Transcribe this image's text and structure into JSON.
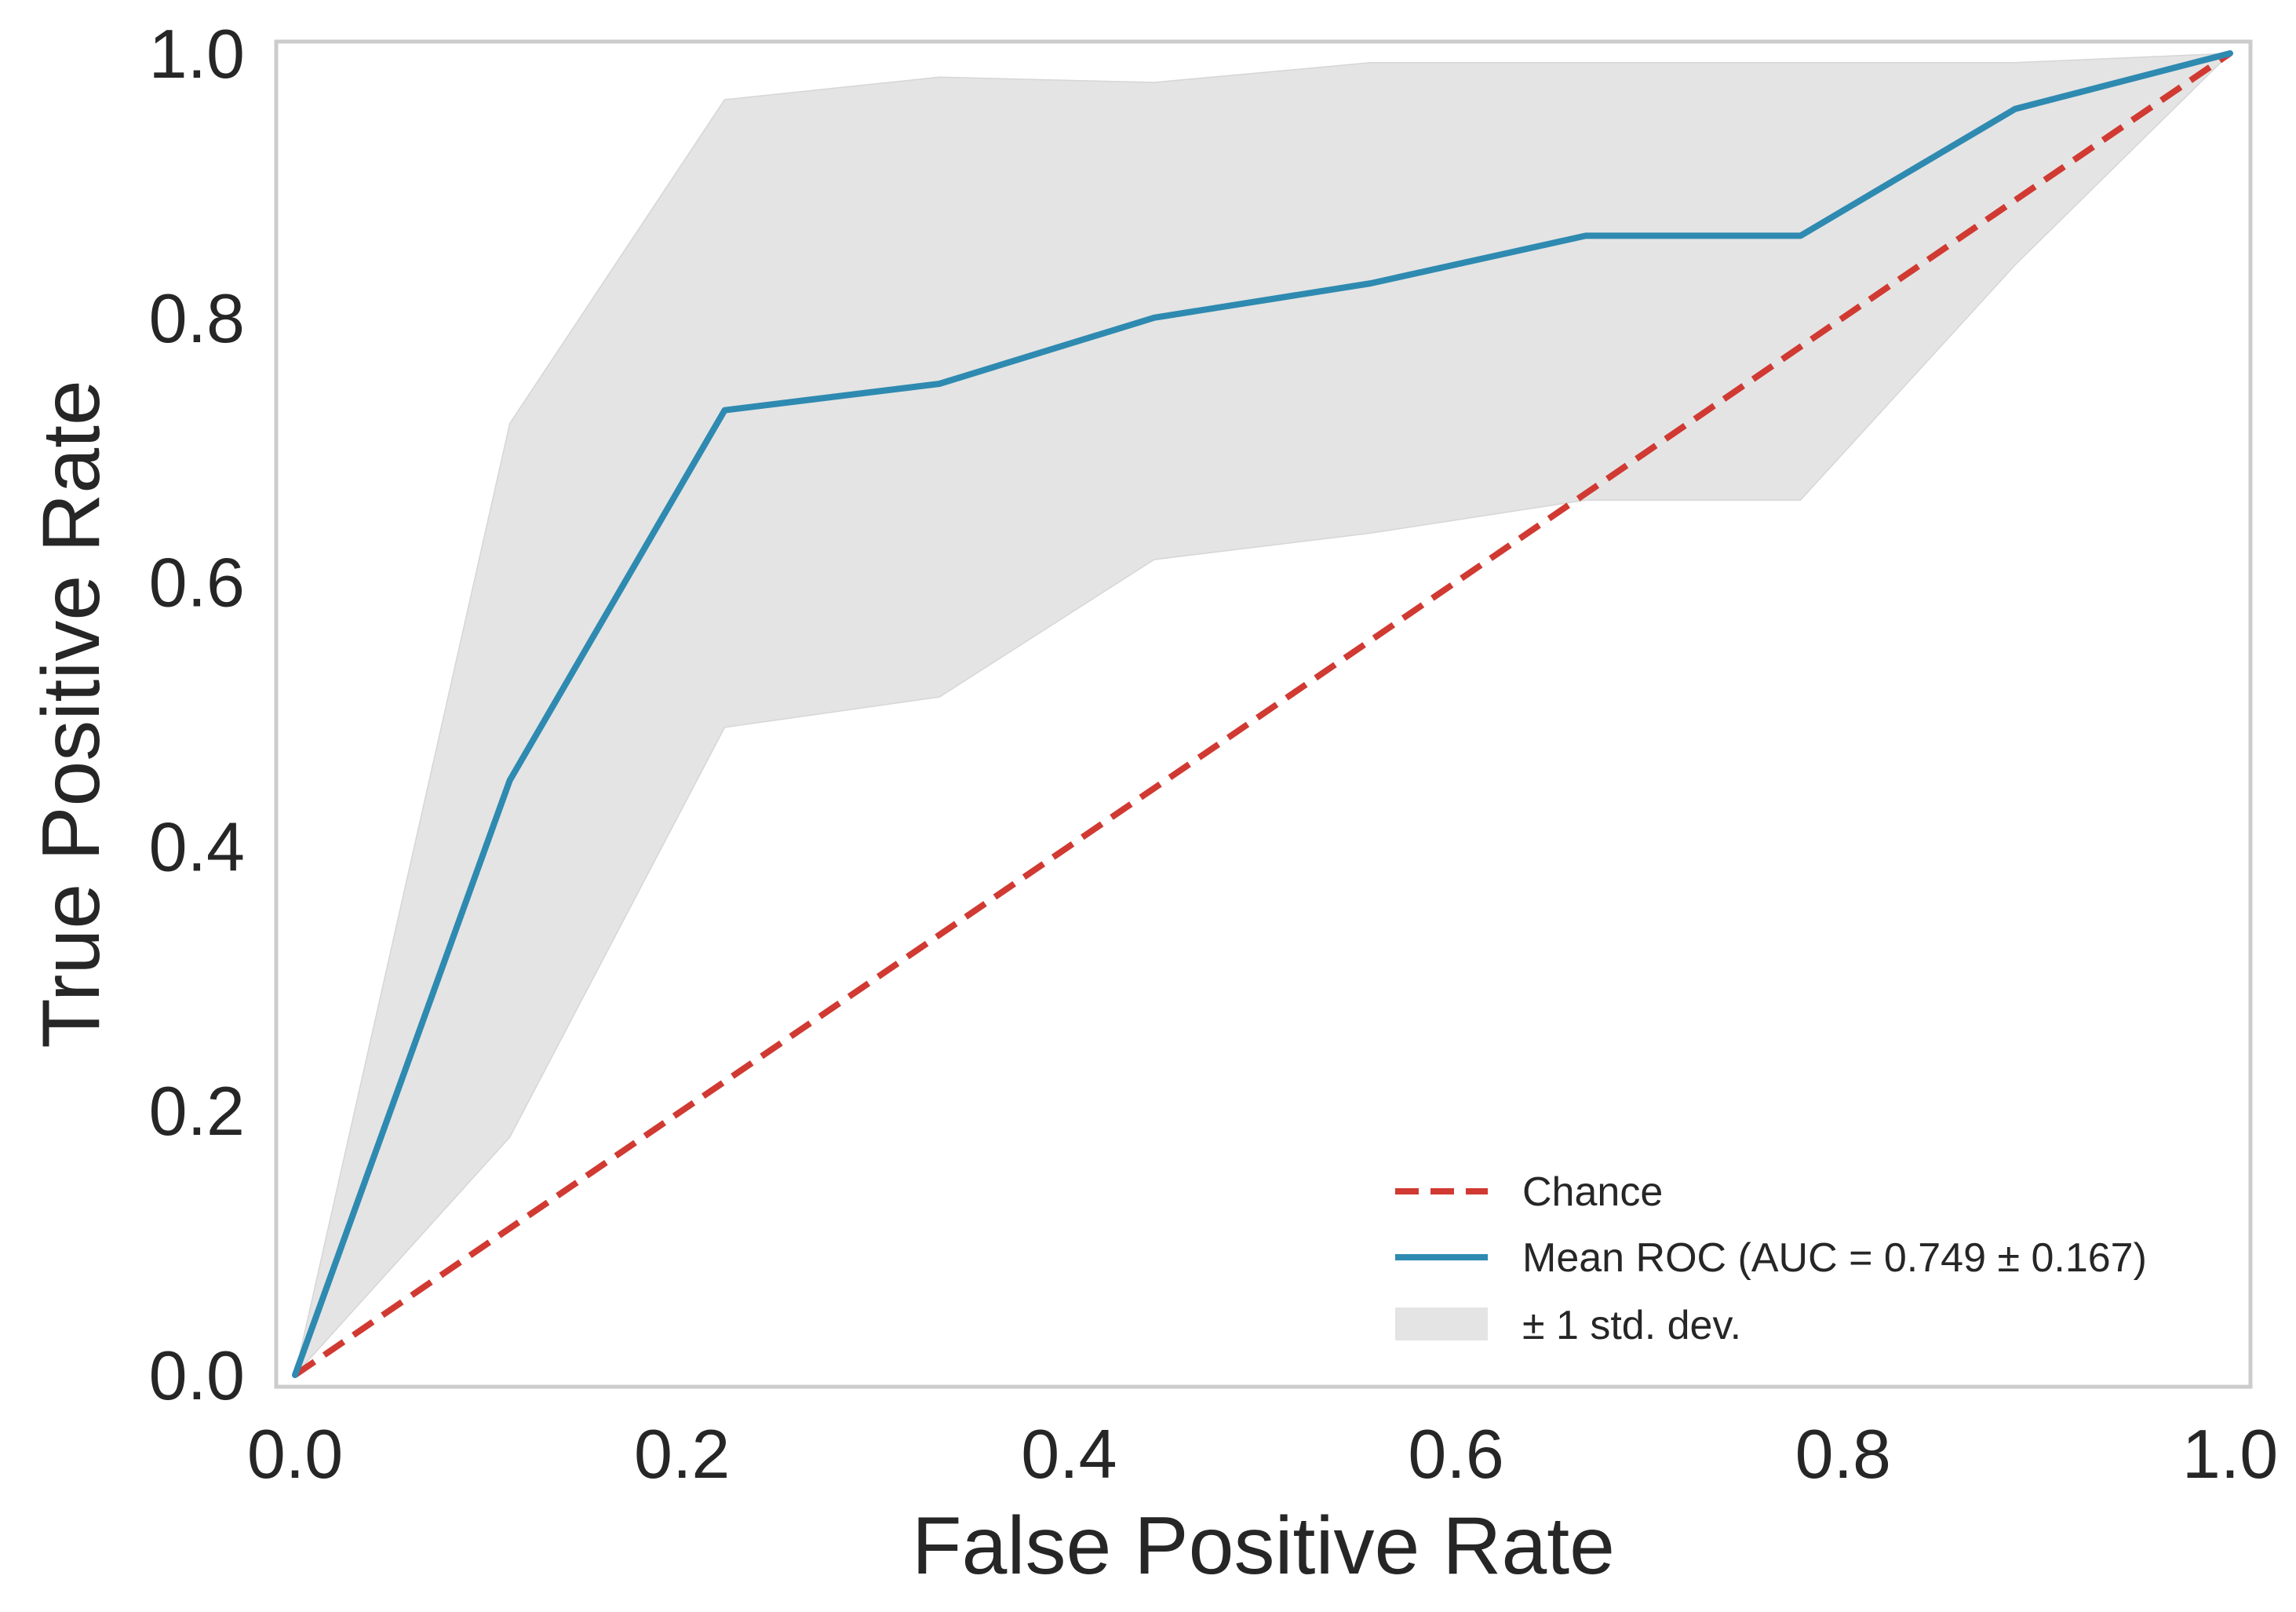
{
  "chart_data": {
    "type": "line",
    "title": "",
    "xlabel": "False Positive Rate",
    "ylabel": "True Positive Rate",
    "xlim": [
      0.0,
      1.0
    ],
    "ylim": [
      0.0,
      1.0
    ],
    "grid": false,
    "x_ticks": [
      "0.0",
      "0.2",
      "0.4",
      "0.6",
      "0.8",
      "1.0"
    ],
    "y_ticks": [
      "0.0",
      "0.2",
      "0.4",
      "0.6",
      "0.8",
      "1.0"
    ],
    "legend_position": "lower-right",
    "colors": {
      "chance": "#d03a32",
      "mean_roc": "#2e8ab0",
      "std_band": "#e4e4e4",
      "axes_frame": "#cccccc",
      "text": "#262626"
    },
    "series": [
      {
        "name": "Chance",
        "legend_label": "Chance",
        "style": "dashed",
        "x": [
          0.0,
          1.0
        ],
        "y": [
          0.0,
          1.0
        ]
      },
      {
        "name": "Mean ROC",
        "legend_label": "Mean ROC (AUC = 0.749 ± 0.167)",
        "style": "solid",
        "x": [
          0.0,
          0.111,
          0.222,
          0.333,
          0.444,
          0.556,
          0.667,
          0.778,
          0.889,
          1.0
        ],
        "y": [
          0.0,
          0.45,
          0.73,
          0.75,
          0.8,
          0.826,
          0.862,
          0.862,
          0.958,
          1.0
        ]
      }
    ],
    "band": {
      "name": "± 1 std. dev.",
      "legend_label": "± 1 std. dev.",
      "x": [
        0.0,
        0.111,
        0.222,
        0.333,
        0.444,
        0.556,
        0.667,
        0.778,
        0.889,
        1.0
      ],
      "upper": [
        0.0,
        0.72,
        0.965,
        0.982,
        0.978,
        0.993,
        0.993,
        0.993,
        0.993,
        1.0
      ],
      "lower": [
        0.0,
        0.18,
        0.49,
        0.513,
        0.617,
        0.637,
        0.662,
        0.662,
        0.84,
        1.0
      ]
    }
  }
}
